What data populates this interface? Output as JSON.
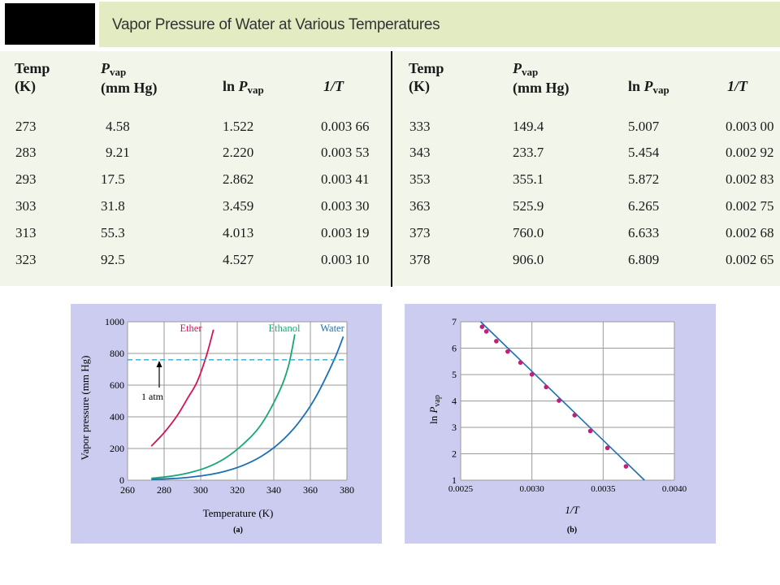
{
  "title": "Vapor Pressure of Water at Various Temperatures",
  "table": {
    "headers": {
      "temp": [
        "Temp",
        "(K)"
      ],
      "pvap_main": "P",
      "pvap_sub": "vap",
      "pvap_unit": "(mm Hg)",
      "lnp_prefix": "ln ",
      "lnp_main": "P",
      "lnp_sub": "vap",
      "inv_t": "1/T"
    },
    "left_rows": [
      [
        "273",
        "4.58",
        "1.522",
        "0.003 66"
      ],
      [
        "283",
        "9.21",
        "2.220",
        "0.003 53"
      ],
      [
        "293",
        "17.5",
        "2.862",
        "0.003 41"
      ],
      [
        "303",
        "31.8",
        "3.459",
        "0.003 30"
      ],
      [
        "313",
        "55.3",
        "4.013",
        "0.003 19"
      ],
      [
        "323",
        "92.5",
        "4.527",
        "0.003 10"
      ]
    ],
    "right_rows": [
      [
        "333",
        "149.4",
        "5.007",
        "0.003 00"
      ],
      [
        "343",
        "233.7",
        "5.454",
        "0.002 92"
      ],
      [
        "353",
        "355.1",
        "5.872",
        "0.002 83"
      ],
      [
        "363",
        "525.9",
        "6.265",
        "0.002 75"
      ],
      [
        "373",
        "760.0",
        "6.633",
        "0.002 68"
      ],
      [
        "378",
        "906.0",
        "6.809",
        "0.002 65"
      ]
    ]
  },
  "chart_data": [
    {
      "type": "line",
      "caption": "(a)",
      "xlabel": "Temperature (K)",
      "ylabel": "Vapor pressure (mm Hg)",
      "xlim": [
        260,
        380
      ],
      "ylim": [
        0,
        1000
      ],
      "x_ticks": [
        "260",
        "280",
        "300",
        "320",
        "340",
        "360",
        "380"
      ],
      "y_ticks": [
        "0",
        "200",
        "400",
        "600",
        "800",
        "1000"
      ],
      "grid": true,
      "annotation": {
        "label": "1 atm",
        "y": 760
      },
      "series": [
        {
          "name": "Ether",
          "color": "#d4145a",
          "x": [
            273,
            280,
            287,
            293,
            298,
            303,
            307
          ],
          "y": [
            215,
            300,
            405,
            520,
            620,
            780,
            950
          ]
        },
        {
          "name": "Ethanol",
          "color": "#1aa577",
          "x": [
            273,
            283,
            293,
            303,
            313,
            323,
            333,
            343,
            348,
            351.5
          ],
          "y": [
            12,
            24,
            45,
            79,
            136,
            225,
            350,
            560,
            720,
            920
          ]
        },
        {
          "name": "Water",
          "color": "#1b6fb5",
          "x": [
            273,
            283,
            293,
            303,
            313,
            323,
            333,
            343,
            353,
            363,
            373,
            378
          ],
          "y": [
            4.58,
            9.21,
            17.5,
            31.8,
            55.3,
            92.5,
            149.4,
            233.7,
            355.1,
            525.9,
            760.0,
            906.0
          ]
        }
      ]
    },
    {
      "type": "scatter",
      "caption": "(b)",
      "xlabel": "1/T",
      "ylabel_prefix": "ln ",
      "ylabel_main": "P",
      "ylabel_sub": "vap",
      "xlim": [
        0.0025,
        0.004
      ],
      "ylim": [
        1,
        7
      ],
      "x_ticks": [
        "0.0025",
        "0.0030",
        "0.0035",
        "0.0040"
      ],
      "y_ticks": [
        "1",
        "2",
        "3",
        "4",
        "5",
        "6",
        "7"
      ],
      "grid": true,
      "point_color": "#c0207a",
      "line_color": "#1b6fb5",
      "points": {
        "x": [
          0.00366,
          0.00353,
          0.00341,
          0.0033,
          0.00319,
          0.0031,
          0.003,
          0.00292,
          0.00283,
          0.00275,
          0.00268,
          0.00265
        ],
        "y": [
          1.522,
          2.22,
          2.862,
          3.459,
          4.013,
          4.527,
          5.007,
          5.454,
          5.872,
          6.265,
          6.633,
          6.809
        ]
      },
      "fit_line": {
        "x": [
          0.00264,
          0.00379
        ],
        "y": [
          7.0,
          1.0
        ]
      }
    }
  ]
}
